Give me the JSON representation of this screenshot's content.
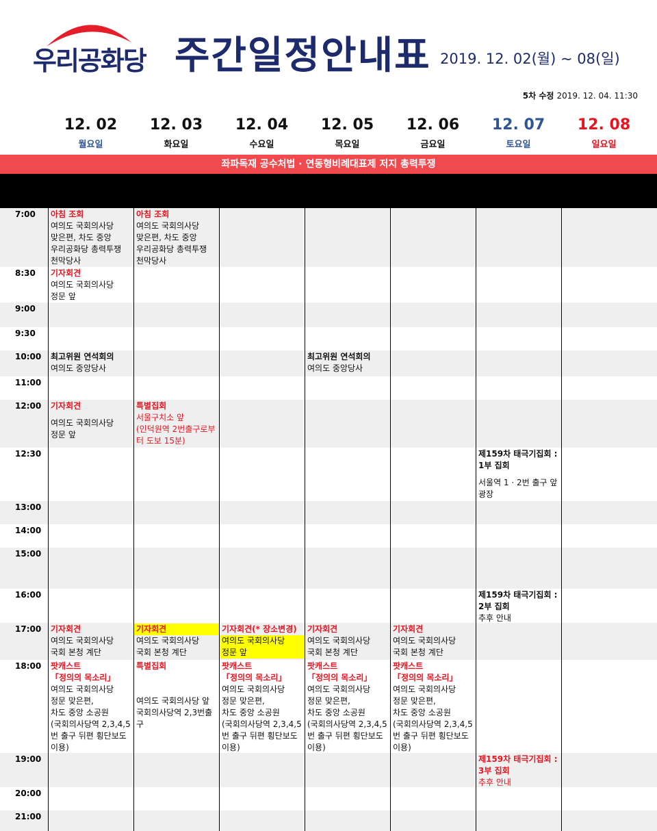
{
  "header": {
    "logo": "우리공화당",
    "title": "주간일정안내표",
    "date_range": "2019. 12. 02(월) ~ 08(일)",
    "revision_label": "5차 수정",
    "revision_date": "2019. 12. 04. 11:30"
  },
  "days": [
    {
      "date": "12. 02",
      "weekday": "월요일",
      "date_color": "#111111",
      "weekday_color": "#2f5597"
    },
    {
      "date": "12. 03",
      "weekday": "화요일",
      "date_color": "#111111",
      "weekday_color": "#111111"
    },
    {
      "date": "12. 04",
      "weekday": "수요일",
      "date_color": "#111111",
      "weekday_color": "#111111"
    },
    {
      "date": "12. 05",
      "weekday": "목요일",
      "date_color": "#111111",
      "weekday_color": "#111111"
    },
    {
      "date": "12. 06",
      "weekday": "금요일",
      "date_color": "#111111",
      "weekday_color": "#111111"
    },
    {
      "date": "12. 07",
      "weekday": "토요일",
      "date_color": "#2f5597",
      "weekday_color": "#2f5597"
    },
    {
      "date": "12. 08",
      "weekday": "일요일",
      "date_color": "#e8141f",
      "weekday_color": "#e8141f"
    }
  ],
  "banner": "좌파독재 공수처법 · 연동형비례대표제 저지 총력투쟁",
  "rows": [
    {
      "time": "7:00",
      "cells": [
        [
          {
            "text": "아침 조회",
            "style": "red bold"
          },
          {
            "text": "여의도 국회의사당",
            "style": "plain"
          },
          {
            "text": "맞은편, 차도 중앙",
            "style": "plain"
          },
          {
            "text": "우리공화당 총력투쟁 천막당사",
            "style": "plain"
          }
        ],
        [
          {
            "text": "아침 조회",
            "style": "red bold"
          },
          {
            "text": "여의도 국회의사당",
            "style": "plain"
          },
          {
            "text": "맞은편, 차도 중앙",
            "style": "plain"
          },
          {
            "text": "우리공화당 총력투쟁 천막당사",
            "style": "plain"
          }
        ],
        [],
        [],
        [],
        [],
        []
      ]
    },
    {
      "time": "8:30",
      "cells": [
        [
          {
            "text": "기자회견",
            "style": "red bold"
          },
          {
            "text": "여의도 국회의사당",
            "style": "plain"
          },
          {
            "text": "정문 앞",
            "style": "plain"
          }
        ],
        [],
        [],
        [],
        [],
        [],
        []
      ]
    },
    {
      "time": "9:00",
      "cells": [
        [],
        [],
        [],
        [],
        [],
        [],
        []
      ]
    },
    {
      "time": "9:30",
      "cells": [
        [],
        [],
        [],
        [],
        [],
        [],
        []
      ]
    },
    {
      "time": "10:00",
      "cells": [
        [
          {
            "text": "최고위원 연석회의",
            "style": "bold"
          },
          {
            "text": "여의도 중앙당사",
            "style": "plain"
          }
        ],
        [],
        [],
        [
          {
            "text": "최고위원 연석회의",
            "style": "bold"
          },
          {
            "text": "여의도 중앙당사",
            "style": "plain"
          }
        ],
        [],
        [],
        []
      ]
    },
    {
      "time": "11:00",
      "cells": [
        [],
        [],
        [],
        [],
        [],
        [],
        []
      ]
    },
    {
      "time": "12:00",
      "cells": [
        [
          {
            "text": "기자회견",
            "style": "red bold gap"
          },
          {
            "text": "여의도 국회의사당",
            "style": "plain"
          },
          {
            "text": "정문 앞",
            "style": "plain"
          }
        ],
        [
          {
            "text": "특별집회",
            "style": "red bold"
          },
          {
            "text": "서울구치소 앞",
            "style": "red"
          },
          {
            "text": "(인덕원역 2번출구로부터 도보 15분)",
            "style": "red"
          }
        ],
        [],
        [],
        [],
        [],
        []
      ]
    },
    {
      "time": "12:30",
      "cells": [
        [],
        [],
        [],
        [],
        [],
        [
          {
            "text": "제159차 태극기집회 : 1부 집회",
            "style": "bold gap"
          },
          {
            "text": "서울역 1 · 2번 출구 앞 광장",
            "style": "plain"
          }
        ],
        []
      ]
    },
    {
      "time": "13:00",
      "cells": [
        [],
        [],
        [],
        [],
        [],
        [],
        []
      ]
    },
    {
      "time": "14:00",
      "cells": [
        [],
        [],
        [],
        [],
        [],
        [],
        []
      ]
    },
    {
      "time": "15:00",
      "cells": [
        [],
        [],
        [],
        [],
        [],
        [],
        []
      ]
    },
    {
      "time": "16:00",
      "cells": [
        [],
        [],
        [],
        [],
        [],
        [
          {
            "text": "제159차 태극기집회 : 2부 집회",
            "style": "bold"
          },
          {
            "text": "추후 안내",
            "style": "plain"
          }
        ],
        []
      ]
    },
    {
      "time": "17:00",
      "cells": [
        [
          {
            "text": "기자회견",
            "style": "red bold"
          },
          {
            "text": "여의도 국회의사당",
            "style": "plain"
          },
          {
            "text": "국회 본청 계단",
            "style": "plain"
          }
        ],
        [
          {
            "text": "기자회견",
            "style": "red bold hl"
          },
          {
            "text": "여의도 국회의사당",
            "style": "plain"
          },
          {
            "text": "국회 본청 계단",
            "style": "plain"
          }
        ],
        [
          {
            "text": "기자회견(* 장소변경)",
            "style": "red bold"
          },
          {
            "text": "여의도 국회의사당",
            "style": "plain hl"
          },
          {
            "text": "정문 앞",
            "style": "plain hl"
          }
        ],
        [
          {
            "text": "기자회견",
            "style": "red bold"
          },
          {
            "text": "여의도 국회의사당",
            "style": "plain"
          },
          {
            "text": "국회 본청 계단",
            "style": "plain"
          }
        ],
        [
          {
            "text": "기자회견",
            "style": "red bold"
          },
          {
            "text": "여의도 국회의사당",
            "style": "plain"
          },
          {
            "text": "국회 본청 계단",
            "style": "plain"
          }
        ],
        [],
        []
      ]
    },
    {
      "time": "18:00",
      "cells": [
        [
          {
            "text": "팟캐스트",
            "style": "red bold"
          },
          {
            "text": "「정의의 목소리」",
            "style": "red bold"
          },
          {
            "text": "여의도 국회의사당",
            "style": "plain"
          },
          {
            "text": "정문 맞은편,",
            "style": "plain"
          },
          {
            "text": "차도 중앙 소공원",
            "style": "plain"
          },
          {
            "text": "(국회의사당역 2,3,4,5번 출구 뒤편 횡단보도 이용)",
            "style": "plain"
          }
        ],
        [
          {
            "text": "특별집회",
            "style": "red bold gap2"
          },
          {
            "text": "여의도 국회의사당 앞",
            "style": "plain"
          },
          {
            "text": "국회의사당역 2,3번출구",
            "style": "plain"
          }
        ],
        [
          {
            "text": "팟캐스트",
            "style": "red bold"
          },
          {
            "text": "「정의의 목소리」",
            "style": "red bold"
          },
          {
            "text": "여의도 국회의사당",
            "style": "plain"
          },
          {
            "text": "정문 맞은편,",
            "style": "plain"
          },
          {
            "text": "차도 중앙 소공원",
            "style": "plain"
          },
          {
            "text": "(국회의사당역 2,3,4,5번 출구 뒤편 횡단보도 이용)",
            "style": "plain"
          }
        ],
        [
          {
            "text": "팟캐스트",
            "style": "red bold"
          },
          {
            "text": "「정의의 목소리」",
            "style": "red bold"
          },
          {
            "text": "여의도 국회의사당",
            "style": "plain"
          },
          {
            "text": "정문 맞은편,",
            "style": "plain"
          },
          {
            "text": "차도 중앙 소공원",
            "style": "plain"
          },
          {
            "text": "(국회의사당역 2,3,4,5번 출구 뒤편 횡단보도 이용)",
            "style": "plain"
          }
        ],
        [
          {
            "text": "팟캐스트",
            "style": "red bold"
          },
          {
            "text": "「정의의 목소리」",
            "style": "red bold"
          },
          {
            "text": "여의도 국회의사당",
            "style": "plain"
          },
          {
            "text": "정문 맞은편,",
            "style": "plain"
          },
          {
            "text": "차도 중앙 소공원",
            "style": "plain"
          },
          {
            "text": "(국회의사당역 2,3,4,5번 출구 뒤편 횡단보도 이용)",
            "style": "plain"
          }
        ],
        [],
        []
      ]
    },
    {
      "time": "19:00",
      "cells": [
        [],
        [],
        [],
        [],
        [],
        [
          {
            "text": "제159차 태극기집회 : 3부 집회",
            "style": "red bold"
          },
          {
            "text": "추후 안내",
            "style": "red"
          }
        ],
        []
      ]
    },
    {
      "time": "20:00",
      "cells": [
        [],
        [],
        [],
        [],
        [],
        [],
        []
      ]
    },
    {
      "time": "21:00",
      "cells": [
        [],
        [],
        [],
        [],
        [],
        [],
        []
      ]
    }
  ]
}
